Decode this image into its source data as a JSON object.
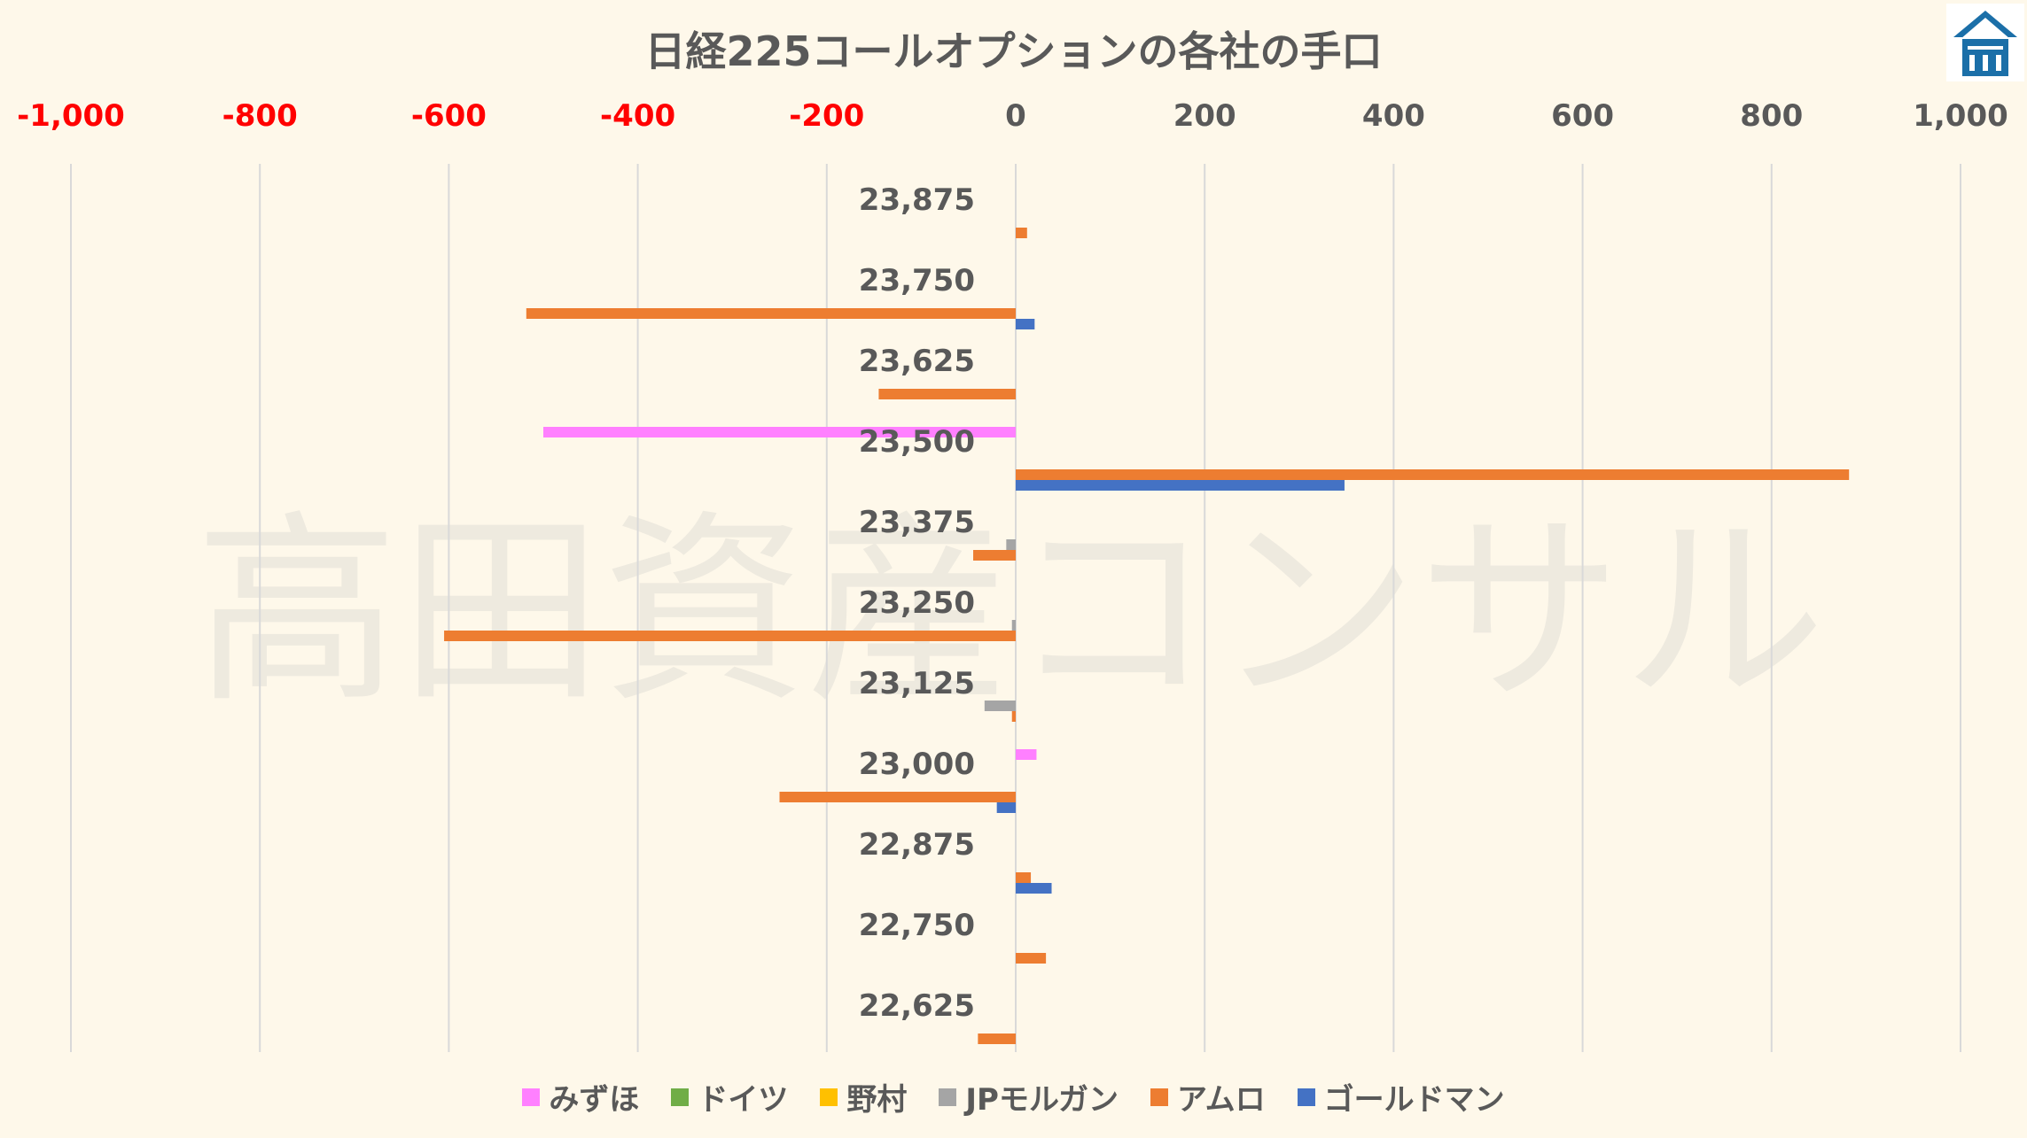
{
  "watermark": "高田資産コンサル",
  "chart_data": {
    "type": "bar",
    "orientation": "horizontal",
    "title": "日経225コールオプションの各社の手口",
    "xlim": [
      -1000,
      1000
    ],
    "x_ticks": [
      "-1,000",
      "-800",
      "-600",
      "-400",
      "-200",
      "0",
      "200",
      "400",
      "600",
      "800",
      "1,000"
    ],
    "x_tick_values": [
      -1000,
      -800,
      -600,
      -400,
      -200,
      0,
      200,
      400,
      600,
      800,
      1000
    ],
    "negative_tick_color": "#ff0000",
    "axis_position": "top",
    "grid": true,
    "legend_position": "bottom",
    "categories": [
      "23,875",
      "23,750",
      "23,625",
      "23,500",
      "23,375",
      "23,250",
      "23,125",
      "23,000",
      "22,875",
      "22,750",
      "22,625"
    ],
    "series": [
      {
        "name": "みずほ",
        "color": "#ff80ff",
        "values": [
          0,
          0,
          0,
          -500,
          0,
          0,
          0,
          22,
          0,
          0,
          0
        ]
      },
      {
        "name": "ドイツ",
        "color": "#70ad47",
        "values": [
          0,
          0,
          0,
          0,
          0,
          0,
          0,
          0,
          0,
          0,
          0
        ]
      },
      {
        "name": "野村",
        "color": "#ffc000",
        "values": [
          0,
          0,
          0,
          0,
          0,
          0,
          0,
          0,
          0,
          0,
          0
        ]
      },
      {
        "name": "JPモルガン",
        "color": "#a5a5a5",
        "values": [
          0,
          0,
          0,
          0,
          -10,
          -4,
          -33,
          0,
          0,
          0,
          0
        ]
      },
      {
        "name": "アムロ",
        "color": "#ed7d31",
        "values": [
          12,
          -518,
          -145,
          882,
          -45,
          -605,
          -4,
          -250,
          16,
          32,
          -40
        ]
      },
      {
        "name": "ゴールドマン",
        "color": "#4472c4",
        "values": [
          0,
          20,
          0,
          348,
          0,
          0,
          0,
          -20,
          38,
          0,
          0
        ]
      }
    ]
  }
}
